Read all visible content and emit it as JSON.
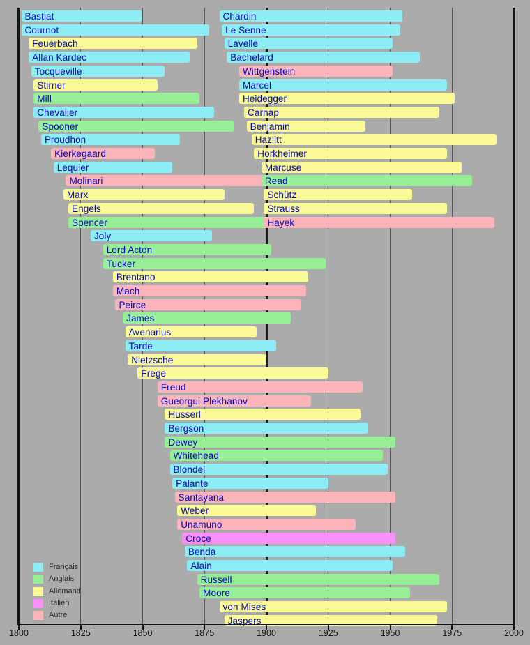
{
  "background_color": "#ABABAB",
  "chart_data": {
    "type": "bar",
    "variant": "timeline-lifespans",
    "x_axis": {
      "min": 1800,
      "max": 2000,
      "tick_interval": 25,
      "ticks": [
        1800,
        1825,
        1850,
        1875,
        1900,
        1925,
        1950,
        1975,
        2000
      ],
      "grid": true,
      "emphasis_gridline_year": 1900
    },
    "legend": {
      "position": "bottom-left",
      "items": [
        {
          "label": "Français",
          "color": "#8DEDF4"
        },
        {
          "label": "Anglais",
          "color": "#96EE96"
        },
        {
          "label": "Allemand",
          "color": "#FAFA96"
        },
        {
          "label": "Italien",
          "color": "#FA91FA"
        },
        {
          "label": "Autre",
          "color": "#FAB4BA"
        }
      ]
    },
    "people": [
      {
        "row": 1,
        "column": "left",
        "name": "Bastiat",
        "group": "Français",
        "born": 1801,
        "died": 1850
      },
      {
        "row": 2,
        "column": "left",
        "name": "Cournot",
        "group": "Français",
        "born": 1801,
        "died": 1877
      },
      {
        "row": 3,
        "column": "left",
        "name": "Feuerbach",
        "group": "Allemand",
        "born": 1804,
        "died": 1872
      },
      {
        "row": 4,
        "column": "left",
        "name": "Allan Kardec",
        "group": "Français",
        "born": 1804,
        "died": 1869
      },
      {
        "row": 5,
        "column": "left",
        "name": "Tocqueville",
        "group": "Français",
        "born": 1805,
        "died": 1859
      },
      {
        "row": 6,
        "column": "left",
        "name": "Stirner",
        "group": "Allemand",
        "born": 1806,
        "died": 1856
      },
      {
        "row": 7,
        "column": "left",
        "name": "Mill",
        "group": "Anglais",
        "born": 1806,
        "died": 1873
      },
      {
        "row": 8,
        "column": "left",
        "name": "Chevalier",
        "group": "Français",
        "born": 1806,
        "died": 1879
      },
      {
        "row": 9,
        "column": "left",
        "name": "Spooner",
        "group": "Anglais",
        "born": 1808,
        "died": 1887
      },
      {
        "row": 10,
        "column": "left",
        "name": "Proudhon",
        "group": "Français",
        "born": 1809,
        "died": 1865
      },
      {
        "row": 11,
        "column": "left",
        "name": "Kierkegaard",
        "group": "Autre",
        "born": 1813,
        "died": 1855
      },
      {
        "row": 12,
        "column": "left",
        "name": "Lequier",
        "group": "Français",
        "born": 1814,
        "died": 1862
      },
      {
        "row": 13,
        "column": "left",
        "name": "Molinari",
        "group": "Autre",
        "born": 1819,
        "died": 1912
      },
      {
        "row": 14,
        "column": "left",
        "name": "Marx",
        "group": "Allemand",
        "born": 1818,
        "died": 1883
      },
      {
        "row": 15,
        "column": "left",
        "name": "Engels",
        "group": "Allemand",
        "born": 1820,
        "died": 1895
      },
      {
        "row": 16,
        "column": "left",
        "name": "Spencer",
        "group": "Anglais",
        "born": 1820,
        "died": 1903
      },
      {
        "row": 17,
        "column": "left",
        "name": "Joly",
        "group": "Français",
        "born": 1829,
        "died": 1878
      },
      {
        "row": 18,
        "column": "left",
        "name": "Lord Acton",
        "group": "Anglais",
        "born": 1834,
        "died": 1902
      },
      {
        "row": 19,
        "column": "left",
        "name": "Tucker",
        "group": "Anglais",
        "born": 1834,
        "died": 1924
      },
      {
        "row": 20,
        "column": "left",
        "name": "Brentano",
        "group": "Allemand",
        "born": 1838,
        "died": 1917
      },
      {
        "row": 21,
        "column": "left",
        "name": "Mach",
        "group": "Autre",
        "born": 1838,
        "died": 1916
      },
      {
        "row": 22,
        "column": "left",
        "name": "Peirce",
        "group": "Autre",
        "born": 1839,
        "died": 1914
      },
      {
        "row": 23,
        "column": "left",
        "name": "James",
        "group": "Anglais",
        "born": 1842,
        "died": 1910
      },
      {
        "row": 24,
        "column": "left",
        "name": "Avenarius",
        "group": "Allemand",
        "born": 1843,
        "died": 1896
      },
      {
        "row": 25,
        "column": "left",
        "name": "Tarde",
        "group": "Français",
        "born": 1843,
        "died": 1904
      },
      {
        "row": 26,
        "column": "left",
        "name": "Nietzsche",
        "group": "Allemand",
        "born": 1844,
        "died": 1900
      },
      {
        "row": 27,
        "column": "left",
        "name": "Frege",
        "group": "Allemand",
        "born": 1848,
        "died": 1925
      },
      {
        "row": 28,
        "column": "left",
        "name": "Freud",
        "group": "Autre",
        "born": 1856,
        "died": 1939
      },
      {
        "row": 29,
        "column": "left",
        "name": "Gueorgui Plekhanov",
        "group": "Autre",
        "born": 1856,
        "died": 1918
      },
      {
        "row": 30,
        "column": "left",
        "name": "Husserl",
        "group": "Allemand",
        "born": 1859,
        "died": 1938
      },
      {
        "row": 31,
        "column": "left",
        "name": "Bergson",
        "group": "Français",
        "born": 1859,
        "died": 1941
      },
      {
        "row": 32,
        "column": "left",
        "name": "Dewey",
        "group": "Anglais",
        "born": 1859,
        "died": 1952
      },
      {
        "row": 33,
        "column": "left",
        "name": "Whitehead",
        "group": "Anglais",
        "born": 1861,
        "died": 1947
      },
      {
        "row": 34,
        "column": "left",
        "name": "Blondel",
        "group": "Français",
        "born": 1861,
        "died": 1949
      },
      {
        "row": 35,
        "column": "left",
        "name": "Palante",
        "group": "Français",
        "born": 1862,
        "died": 1925
      },
      {
        "row": 36,
        "column": "left",
        "name": "Santayana",
        "group": "Autre",
        "born": 1863,
        "died": 1952
      },
      {
        "row": 37,
        "column": "left",
        "name": "Weber",
        "group": "Allemand",
        "born": 1864,
        "died": 1920
      },
      {
        "row": 38,
        "column": "left",
        "name": "Unamuno",
        "group": "Autre",
        "born": 1864,
        "died": 1936
      },
      {
        "row": 39,
        "column": "left",
        "name": "Croce",
        "group": "Italien",
        "born": 1866,
        "died": 1952
      },
      {
        "row": 40,
        "column": "left",
        "name": "Benda",
        "group": "Français",
        "born": 1867,
        "died": 1956
      },
      {
        "row": 41,
        "column": "left",
        "name": "Alain",
        "group": "Français",
        "born": 1868,
        "died": 1951
      },
      {
        "row": 42,
        "column": "left",
        "name": "Russell",
        "group": "Anglais",
        "born": 1872,
        "died": 1970
      },
      {
        "row": 43,
        "column": "left",
        "name": "Moore",
        "group": "Anglais",
        "born": 1873,
        "died": 1958
      },
      {
        "row": 44,
        "column": "left",
        "name": "von Mises",
        "group": "Allemand",
        "born": 1881,
        "died": 1973
      },
      {
        "row": 45,
        "column": "left",
        "name": "Jaspers",
        "group": "Allemand",
        "born": 1883,
        "died": 1969
      },
      {
        "row": 1,
        "column": "right",
        "name": "Chardin",
        "group": "Français",
        "born": 1881,
        "died": 1955
      },
      {
        "row": 2,
        "column": "right",
        "name": "Le Senne",
        "group": "Français",
        "born": 1882,
        "died": 1954
      },
      {
        "row": 3,
        "column": "right",
        "name": "Lavelle",
        "group": "Français",
        "born": 1883,
        "died": 1951
      },
      {
        "row": 4,
        "column": "right",
        "name": "Bachelard",
        "group": "Français",
        "born": 1884,
        "died": 1962
      },
      {
        "row": 5,
        "column": "right",
        "name": "Wittgenstein",
        "group": "Autre",
        "born": 1889,
        "died": 1951
      },
      {
        "row": 6,
        "column": "right",
        "name": "Marcel",
        "group": "Français",
        "born": 1889,
        "died": 1973
      },
      {
        "row": 7,
        "column": "right",
        "name": "Heidegger",
        "group": "Allemand",
        "born": 1889,
        "died": 1976
      },
      {
        "row": 8,
        "column": "right",
        "name": "Carnap",
        "group": "Allemand",
        "born": 1891,
        "died": 1970
      },
      {
        "row": 9,
        "column": "right",
        "name": "Benjamin",
        "group": "Allemand",
        "born": 1892,
        "died": 1940
      },
      {
        "row": 10,
        "column": "right",
        "name": "Hazlitt",
        "group": "Allemand",
        "born": 1894,
        "died": 1993
      },
      {
        "row": 11,
        "column": "right",
        "name": "Horkheimer",
        "group": "Allemand",
        "born": 1895,
        "died": 1973
      },
      {
        "row": 12,
        "column": "right",
        "name": "Marcuse",
        "group": "Allemand",
        "born": 1898,
        "died": 1979
      },
      {
        "row": 13,
        "column": "right",
        "name": "Read",
        "group": "Anglais",
        "born": 1898,
        "died": 1983
      },
      {
        "row": 14,
        "column": "right",
        "name": "Schütz",
        "group": "Allemand",
        "born": 1899,
        "died": 1959
      },
      {
        "row": 15,
        "column": "right",
        "name": "Strauss",
        "group": "Allemand",
        "born": 1899,
        "died": 1973
      },
      {
        "row": 16,
        "column": "right",
        "name": "Hayek",
        "group": "Autre",
        "born": 1899,
        "died": 1992
      }
    ]
  }
}
